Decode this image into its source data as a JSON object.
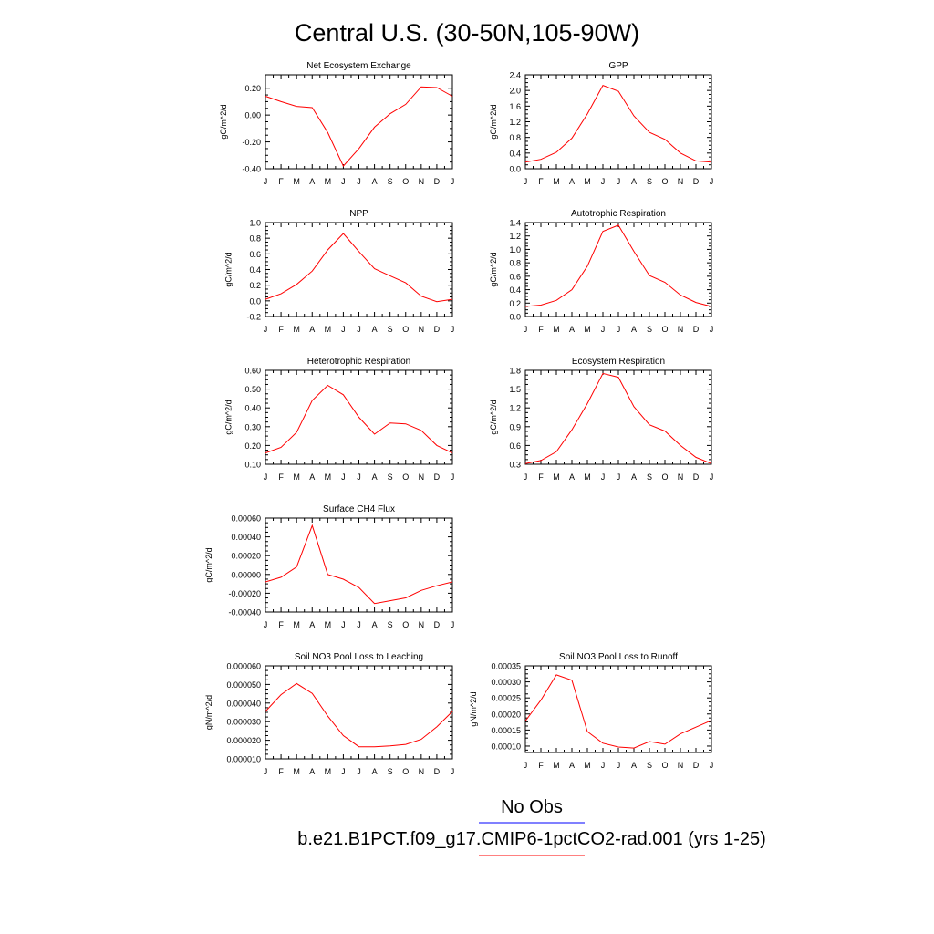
{
  "page_title": "Central U.S. (30-50N,105-90W)",
  "colors": {
    "model": "#ff0000",
    "obs": "#0000ff"
  },
  "legend": {
    "obs_label": "No Obs",
    "model_label": "b.e21.B1PCT.f09_g17.CMIP6-1pctCO2-rad.001 (yrs 1-25)"
  },
  "chart_data": [
    {
      "type": "line",
      "title": "Net Ecosystem Exchange",
      "xlabel": "",
      "ylabel": "gC/m^2/d",
      "x": [
        "J",
        "F",
        "M",
        "A",
        "M",
        "J",
        "J",
        "A",
        "S",
        "O",
        "N",
        "D",
        "J"
      ],
      "ylim": [
        -0.4,
        0.3
      ],
      "yticks": [
        "-0.40",
        "-0.20",
        "0.00",
        "0.20"
      ],
      "ytick_values": [
        -0.4,
        -0.2,
        0.0,
        0.2
      ],
      "series": [
        {
          "values": [
            0.14,
            0.1,
            0.065,
            0.055,
            -0.13,
            -0.38,
            -0.25,
            -0.09,
            0.01,
            0.08,
            0.21,
            0.205,
            0.14
          ]
        }
      ]
    },
    {
      "type": "line",
      "title": "GPP",
      "xlabel": "",
      "ylabel": "gC/m^2/d",
      "x": [
        "J",
        "F",
        "M",
        "A",
        "M",
        "J",
        "J",
        "A",
        "S",
        "O",
        "N",
        "D",
        "J"
      ],
      "ylim": [
        0.0,
        2.4
      ],
      "yticks": [
        "0.0",
        "0.4",
        "0.8",
        "1.2",
        "1.6",
        "2.0",
        "2.4"
      ],
      "ytick_values": [
        0,
        0.4,
        0.8,
        1.2,
        1.6,
        2.0,
        2.4
      ],
      "series": [
        {
          "values": [
            0.17,
            0.24,
            0.42,
            0.78,
            1.4,
            2.13,
            1.98,
            1.35,
            0.93,
            0.75,
            0.4,
            0.2,
            0.17
          ]
        }
      ]
    },
    {
      "type": "line",
      "title": "NPP",
      "xlabel": "",
      "ylabel": "gC/m^2/d",
      "x": [
        "J",
        "F",
        "M",
        "A",
        "M",
        "J",
        "J",
        "A",
        "S",
        "O",
        "N",
        "D",
        "J"
      ],
      "ylim": [
        -0.2,
        1.0
      ],
      "yticks": [
        "-0.2",
        "0.0",
        "0.2",
        "0.4",
        "0.6",
        "0.8",
        "1.0"
      ],
      "ytick_values": [
        -0.2,
        0,
        0.2,
        0.4,
        0.6,
        0.8,
        1.0
      ],
      "series": [
        {
          "values": [
            0.02,
            0.09,
            0.21,
            0.38,
            0.65,
            0.86,
            0.63,
            0.41,
            0.32,
            0.23,
            0.06,
            -0.01,
            0.02
          ]
        }
      ]
    },
    {
      "type": "line",
      "title": "Autotrophic Respiration",
      "xlabel": "",
      "ylabel": "gC/m^2/d",
      "x": [
        "J",
        "F",
        "M",
        "A",
        "M",
        "J",
        "J",
        "A",
        "S",
        "O",
        "N",
        "D",
        "J"
      ],
      "ylim": [
        0.0,
        1.4
      ],
      "yticks": [
        "0.0",
        "0.2",
        "0.4",
        "0.6",
        "0.8",
        "1.0",
        "1.2",
        "1.4"
      ],
      "ytick_values": [
        0,
        0.2,
        0.4,
        0.6,
        0.8,
        1.0,
        1.2,
        1.4
      ],
      "series": [
        {
          "values": [
            0.15,
            0.17,
            0.24,
            0.4,
            0.75,
            1.27,
            1.36,
            0.97,
            0.61,
            0.51,
            0.32,
            0.21,
            0.15
          ]
        }
      ]
    },
    {
      "type": "line",
      "title": "Heterotrophic Respiration",
      "xlabel": "",
      "ylabel": "gC/m^2/d",
      "x": [
        "J",
        "F",
        "M",
        "A",
        "M",
        "J",
        "J",
        "A",
        "S",
        "O",
        "N",
        "D",
        "J"
      ],
      "ylim": [
        0.1,
        0.6
      ],
      "yticks": [
        "0.10",
        "0.20",
        "0.30",
        "0.40",
        "0.50",
        "0.60"
      ],
      "ytick_values": [
        0.1,
        0.2,
        0.3,
        0.4,
        0.5,
        0.6
      ],
      "series": [
        {
          "values": [
            0.16,
            0.19,
            0.27,
            0.44,
            0.52,
            0.47,
            0.35,
            0.26,
            0.32,
            0.315,
            0.28,
            0.2,
            0.16
          ]
        }
      ]
    },
    {
      "type": "line",
      "title": "Ecosystem Respiration",
      "xlabel": "",
      "ylabel": "gC/m^2/d",
      "x": [
        "J",
        "F",
        "M",
        "A",
        "M",
        "J",
        "J",
        "A",
        "S",
        "O",
        "N",
        "D",
        "J"
      ],
      "ylim": [
        0.3,
        1.8
      ],
      "yticks": [
        "0.3",
        "0.6",
        "0.9",
        "1.2",
        "1.5",
        "1.8"
      ],
      "ytick_values": [
        0.3,
        0.6,
        0.9,
        1.2,
        1.5,
        1.8
      ],
      "series": [
        {
          "values": [
            0.31,
            0.36,
            0.5,
            0.85,
            1.27,
            1.75,
            1.69,
            1.22,
            0.93,
            0.83,
            0.6,
            0.41,
            0.31
          ]
        }
      ]
    },
    {
      "type": "line",
      "title": "Surface CH4 Flux",
      "xlabel": "",
      "ylabel": "gC/m^2/d",
      "x": [
        "J",
        "F",
        "M",
        "A",
        "M",
        "J",
        "J",
        "A",
        "S",
        "O",
        "N",
        "D",
        "J"
      ],
      "ylim": [
        -0.0004,
        0.0006
      ],
      "yticks": [
        "-0.00040",
        "-0.00020",
        "0.00000",
        "0.00020",
        "0.00040",
        "0.00060"
      ],
      "ytick_values": [
        -0.0004,
        -0.0002,
        0,
        0.0002,
        0.0004,
        0.0006
      ],
      "series": [
        {
          "values": [
            -8e-05,
            -3e-05,
            8e-05,
            0.00052,
            0.0,
            -5e-05,
            -0.00014,
            -0.00031,
            -0.00028,
            -0.00025,
            -0.00017,
            -0.00012,
            -8e-05
          ]
        }
      ]
    },
    {
      "type": "line",
      "title": "Soil NO3 Pool Loss to Leaching",
      "xlabel": "",
      "ylabel": "gN/m^2/d",
      "x": [
        "J",
        "F",
        "M",
        "A",
        "M",
        "J",
        "J",
        "A",
        "S",
        "O",
        "N",
        "D",
        "J"
      ],
      "ylim": [
        1e-05,
        6e-05
      ],
      "yticks": [
        "0.000010",
        "0.000020",
        "0.000030",
        "0.000040",
        "0.000050",
        "0.000060"
      ],
      "ytick_values": [
        1e-05,
        2e-05,
        3e-05,
        4e-05,
        5e-05,
        6e-05
      ],
      "series": [
        {
          "values": [
            3.55e-05,
            4.45e-05,
            5.05e-05,
            4.52e-05,
            3.3e-05,
            2.25e-05,
            1.65e-05,
            1.65e-05,
            1.7e-05,
            1.78e-05,
            2.05e-05,
            2.72e-05,
            3.55e-05
          ]
        }
      ]
    },
    {
      "type": "line",
      "title": "Soil NO3 Pool Loss to Runoff",
      "xlabel": "",
      "ylabel": "gN/m^2/d",
      "x": [
        "J",
        "F",
        "M",
        "A",
        "M",
        "J",
        "J",
        "A",
        "S",
        "O",
        "N",
        "D",
        "J"
      ],
      "ylim": [
        8e-05,
        0.00035
      ],
      "yticks": [
        "0.00010",
        "0.00015",
        "0.00020",
        "0.00025",
        "0.00030",
        "0.00035"
      ],
      "ytick_values": [
        0.0001,
        0.00015,
        0.0002,
        0.00025,
        0.0003,
        0.00035
      ],
      "series": [
        {
          "values": [
            0.000178,
            0.000243,
            0.000322,
            0.000305,
            0.000145,
            0.000109,
            9.7e-05,
            9.4e-05,
            0.000114,
            0.000106,
            0.000138,
            0.000159,
            0.00018
          ]
        }
      ]
    }
  ]
}
